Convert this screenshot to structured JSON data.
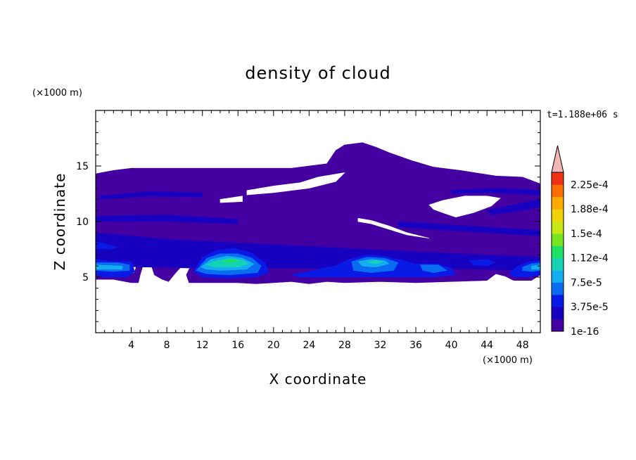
{
  "chart_data": {
    "type": "heatmap",
    "title": "density of cloud",
    "xlabel": "X coordinate",
    "ylabel": "Z coordinate",
    "x_unit": "(×1000 m)",
    "z_unit": "(×1000 m)",
    "time_label": "t=1.188e+06 s",
    "xlim": [
      0,
      50
    ],
    "ylim": [
      0,
      20
    ],
    "x_ticks": [
      4,
      8,
      12,
      16,
      20,
      24,
      28,
      32,
      36,
      40,
      44,
      48
    ],
    "y_ticks": [
      5,
      10,
      15
    ],
    "colorbar": {
      "labels": [
        "1e-16",
        "3.75e-5",
        "7.5e-5",
        "1.12e-4",
        "1.5e-4",
        "1.88e-4",
        "2.25e-4"
      ],
      "colors": [
        "#4400a0",
        "#1800c0",
        "#0a1ae6",
        "#0a6cf0",
        "#12aef0",
        "#14d2b4",
        "#1ee064",
        "#78e61e",
        "#c8e614",
        "#f0d20a",
        "#fcaa00",
        "#fc6e00",
        "#f03214"
      ],
      "over_color": "#f2b6b6"
    },
    "cloud_regions": [
      {
        "level": 0,
        "points": [
          [
            0,
            14.3
          ],
          [
            2,
            14.6
          ],
          [
            4,
            14.8
          ],
          [
            6,
            14.8
          ],
          [
            10,
            14.8
          ],
          [
            16,
            14.8
          ],
          [
            22,
            14.8
          ],
          [
            26,
            15.2
          ],
          [
            27,
            16.4
          ],
          [
            28,
            16.9
          ],
          [
            30,
            17.1
          ],
          [
            31.5,
            16.7
          ],
          [
            33,
            16.2
          ],
          [
            35.5,
            15.5
          ],
          [
            38,
            14.9
          ],
          [
            41,
            14.6
          ],
          [
            45,
            14.1
          ],
          [
            48,
            14
          ],
          [
            50,
            13.4
          ],
          [
            50,
            5.2
          ],
          [
            49,
            4.7
          ],
          [
            47,
            4.7
          ],
          [
            46,
            5.1
          ],
          [
            45,
            5.3
          ],
          [
            44,
            4.7
          ],
          [
            40,
            4.6
          ],
          [
            36,
            4.5
          ],
          [
            32,
            4.6
          ],
          [
            28,
            4.5
          ],
          [
            26,
            4.6
          ],
          [
            24,
            4.4
          ],
          [
            22,
            4.6
          ],
          [
            20,
            4.5
          ],
          [
            18,
            4.4
          ],
          [
            16,
            4.5
          ],
          [
            12,
            4.5
          ],
          [
            10.5,
            4.5
          ],
          [
            10.2,
            5.2
          ],
          [
            10.8,
            6.2
          ],
          [
            9.8,
            6.1
          ],
          [
            9,
            5.4
          ],
          [
            8.2,
            4.6
          ],
          [
            7.5,
            4.8
          ],
          [
            6.6,
            5.2
          ],
          [
            6.2,
            6.2
          ],
          [
            5.3,
            6.0
          ],
          [
            5,
            5.2
          ],
          [
            4.8,
            4.5
          ],
          [
            4,
            4.5
          ],
          [
            2,
            4.8
          ],
          [
            0,
            4.8
          ]
        ]
      },
      {
        "level": -1,
        "points": [
          [
            17,
            12.8
          ],
          [
            20,
            13.2
          ],
          [
            23,
            13.5
          ],
          [
            25,
            14.0
          ],
          [
            28,
            14.4
          ],
          [
            27,
            13.6
          ],
          [
            24,
            13.0
          ],
          [
            20,
            12.6
          ],
          [
            17,
            12.4
          ]
        ]
      },
      {
        "level": -1,
        "points": [
          [
            14,
            12.0
          ],
          [
            16.5,
            12.3
          ],
          [
            16.5,
            11.8
          ],
          [
            14,
            11.7
          ]
        ]
      },
      {
        "level": -1,
        "points": [
          [
            29.5,
            10.3
          ],
          [
            31,
            10.1
          ],
          [
            33,
            9.6
          ],
          [
            35,
            9.0
          ],
          [
            37.5,
            8.5
          ],
          [
            35,
            8.8
          ],
          [
            33,
            9.3
          ],
          [
            31,
            9.8
          ],
          [
            29.5,
            10.0
          ]
        ]
      },
      {
        "level": -1,
        "points": [
          [
            37.5,
            11.5
          ],
          [
            39,
            11.9
          ],
          [
            41.5,
            12.3
          ],
          [
            44,
            12.3
          ],
          [
            45.5,
            12.1
          ],
          [
            44.5,
            11.4
          ],
          [
            42.5,
            10.8
          ],
          [
            40.5,
            10.4
          ],
          [
            39,
            10.8
          ],
          [
            38,
            11.1
          ]
        ]
      },
      {
        "level": -1,
        "points": [
          [
            0.5,
            6.0
          ],
          [
            4.6,
            6.2
          ],
          [
            4.3,
            5.4
          ],
          [
            1,
            5.5
          ]
        ]
      },
      {
        "level": 1,
        "points": [
          [
            0,
            9.0
          ],
          [
            8,
            8.4
          ],
          [
            18,
            8.0
          ],
          [
            28,
            7.6
          ],
          [
            38,
            7.2
          ],
          [
            50,
            6.8
          ],
          [
            50,
            5.6
          ],
          [
            38,
            5.8
          ],
          [
            26,
            5.8
          ],
          [
            12,
            5.8
          ],
          [
            0,
            6.0
          ]
        ]
      },
      {
        "level": 2,
        "points": [
          [
            0,
            6.6
          ],
          [
            2,
            6.4
          ],
          [
            4,
            6.4
          ],
          [
            4.4,
            5.5
          ],
          [
            3.5,
            5.0
          ],
          [
            1,
            5.0
          ],
          [
            0,
            5.2
          ]
        ]
      },
      {
        "level": 3,
        "points": [
          [
            0,
            6.3
          ],
          [
            2.5,
            6.3
          ],
          [
            3.8,
            6.1
          ],
          [
            3.8,
            5.6
          ],
          [
            2,
            5.5
          ],
          [
            0,
            5.6
          ]
        ]
      },
      {
        "level": 4,
        "points": [
          [
            0,
            6.1
          ],
          [
            3,
            6.0
          ],
          [
            3,
            5.7
          ],
          [
            0,
            5.7
          ]
        ]
      },
      {
        "level": 2,
        "points": [
          [
            11,
            5.5
          ],
          [
            12,
            6.8
          ],
          [
            13.5,
            7.4
          ],
          [
            15.5,
            7.6
          ],
          [
            17.5,
            7.2
          ],
          [
            19,
            6.3
          ],
          [
            19.5,
            5.4
          ],
          [
            18,
            5.0
          ],
          [
            15,
            4.9
          ],
          [
            12,
            5.0
          ]
        ]
      },
      {
        "level": 3,
        "points": [
          [
            11.3,
            5.6
          ],
          [
            12.5,
            6.7
          ],
          [
            14,
            7.1
          ],
          [
            16,
            7.1
          ],
          [
            17.6,
            6.7
          ],
          [
            18.6,
            6.0
          ],
          [
            18.2,
            5.4
          ],
          [
            15,
            5.2
          ],
          [
            12.5,
            5.3
          ]
        ]
      },
      {
        "level": 4,
        "points": [
          [
            11.8,
            5.9
          ],
          [
            13,
            6.6
          ],
          [
            14.8,
            6.9
          ],
          [
            16.5,
            6.7
          ],
          [
            17.8,
            6.2
          ],
          [
            17,
            5.7
          ],
          [
            14,
            5.6
          ],
          [
            12.5,
            5.7
          ]
        ]
      },
      {
        "level": 5,
        "points": [
          [
            12.4,
            6.1
          ],
          [
            13.6,
            6.5
          ],
          [
            15,
            6.7
          ],
          [
            16.6,
            6.5
          ],
          [
            17.2,
            6.2
          ],
          [
            16,
            5.9
          ],
          [
            13.5,
            5.9
          ]
        ]
      },
      {
        "level": 6,
        "points": [
          [
            14.2,
            6.4
          ],
          [
            15.2,
            6.6
          ],
          [
            16.2,
            6.5
          ],
          [
            15.2,
            6.3
          ]
        ]
      },
      {
        "level": 2,
        "points": [
          [
            22,
            5.2
          ],
          [
            24,
            5.5
          ],
          [
            25.5,
            5.8
          ],
          [
            27,
            6.0
          ],
          [
            28.5,
            6.6
          ],
          [
            30.5,
            7.0
          ],
          [
            32.5,
            6.9
          ],
          [
            34,
            6.6
          ],
          [
            36,
            6.2
          ],
          [
            38.5,
            6.2
          ],
          [
            40,
            5.8
          ],
          [
            40.5,
            5.2
          ],
          [
            38,
            5.0
          ],
          [
            34,
            5.0
          ],
          [
            30,
            5.0
          ],
          [
            26,
            5.0
          ],
          [
            23,
            5.0
          ]
        ]
      },
      {
        "level": 3,
        "points": [
          [
            28.8,
            6.4
          ],
          [
            30.5,
            6.8
          ],
          [
            32.5,
            6.7
          ],
          [
            34,
            6.3
          ],
          [
            33.5,
            5.6
          ],
          [
            31,
            5.4
          ],
          [
            29,
            5.6
          ]
        ]
      },
      {
        "level": 4,
        "points": [
          [
            29.5,
            6.4
          ],
          [
            31,
            6.6
          ],
          [
            32.5,
            6.5
          ],
          [
            33,
            6.2
          ],
          [
            31.5,
            5.9
          ],
          [
            30,
            6.0
          ]
        ]
      },
      {
        "level": 5,
        "points": [
          [
            30.5,
            6.4
          ],
          [
            31.5,
            6.5
          ],
          [
            32.3,
            6.4
          ],
          [
            31.5,
            6.2
          ]
        ]
      },
      {
        "level": 3,
        "points": [
          [
            36.5,
            6.1
          ],
          [
            38.5,
            6.1
          ],
          [
            39.5,
            5.6
          ],
          [
            38,
            5.4
          ],
          [
            36.8,
            5.6
          ]
        ]
      },
      {
        "level": 2,
        "points": [
          [
            42,
            6.5
          ],
          [
            44,
            6.6
          ],
          [
            45,
            6.3
          ],
          [
            44,
            6.0
          ],
          [
            42.5,
            6.1
          ]
        ]
      },
      {
        "level": 2,
        "points": [
          [
            46.5,
            5.4
          ],
          [
            47.5,
            6.0
          ],
          [
            48.7,
            6.4
          ],
          [
            50,
            6.5
          ],
          [
            50,
            5.2
          ],
          [
            48.5,
            5.0
          ],
          [
            47,
            5.0
          ]
        ]
      },
      {
        "level": 3,
        "points": [
          [
            48,
            5.9
          ],
          [
            49,
            6.2
          ],
          [
            50,
            6.3
          ],
          [
            50,
            5.6
          ],
          [
            49,
            5.5
          ],
          [
            48,
            5.6
          ]
        ]
      },
      {
        "level": 4,
        "points": [
          [
            49,
            6.0
          ],
          [
            50,
            6.1
          ],
          [
            50,
            5.7
          ],
          [
            49,
            5.7
          ]
        ]
      },
      {
        "level": 1,
        "points": [
          [
            0,
            8.0
          ],
          [
            5,
            7.9
          ],
          [
            10,
            7.6
          ],
          [
            10,
            7.2
          ],
          [
            5,
            7.4
          ],
          [
            0,
            7.6
          ]
        ]
      },
      {
        "level": 2,
        "points": [
          [
            0,
            8.2
          ],
          [
            1,
            8.0
          ],
          [
            2.5,
            7.7
          ],
          [
            1.5,
            7.5
          ],
          [
            0,
            7.6
          ]
        ]
      },
      {
        "level": 1,
        "points": [
          [
            0.5,
            12.3
          ],
          [
            6,
            12.7
          ],
          [
            12,
            12.6
          ],
          [
            12,
            12.2
          ],
          [
            6,
            12.3
          ],
          [
            0.5,
            12.0
          ]
        ]
      },
      {
        "level": 1,
        "points": [
          [
            0,
            10.5
          ],
          [
            8,
            10.6
          ],
          [
            16,
            10.2
          ],
          [
            16,
            9.8
          ],
          [
            8,
            10.0
          ],
          [
            0,
            10.0
          ]
        ]
      },
      {
        "level": 1,
        "points": [
          [
            34,
            10.0
          ],
          [
            42,
            9.6
          ],
          [
            50,
            9.2
          ],
          [
            50,
            8.7
          ],
          [
            42,
            9.1
          ],
          [
            34,
            9.5
          ]
        ]
      },
      {
        "level": 1,
        "points": [
          [
            44,
            11.0
          ],
          [
            47,
            11.5
          ],
          [
            50,
            12.0
          ],
          [
            50,
            11.3
          ],
          [
            47,
            10.9
          ],
          [
            44.5,
            10.6
          ]
        ]
      },
      {
        "level": 1,
        "points": [
          [
            40,
            12.8
          ],
          [
            45,
            13.0
          ],
          [
            50,
            12.8
          ],
          [
            50,
            12.4
          ],
          [
            45,
            12.6
          ],
          [
            40,
            12.5
          ]
        ]
      }
    ]
  }
}
